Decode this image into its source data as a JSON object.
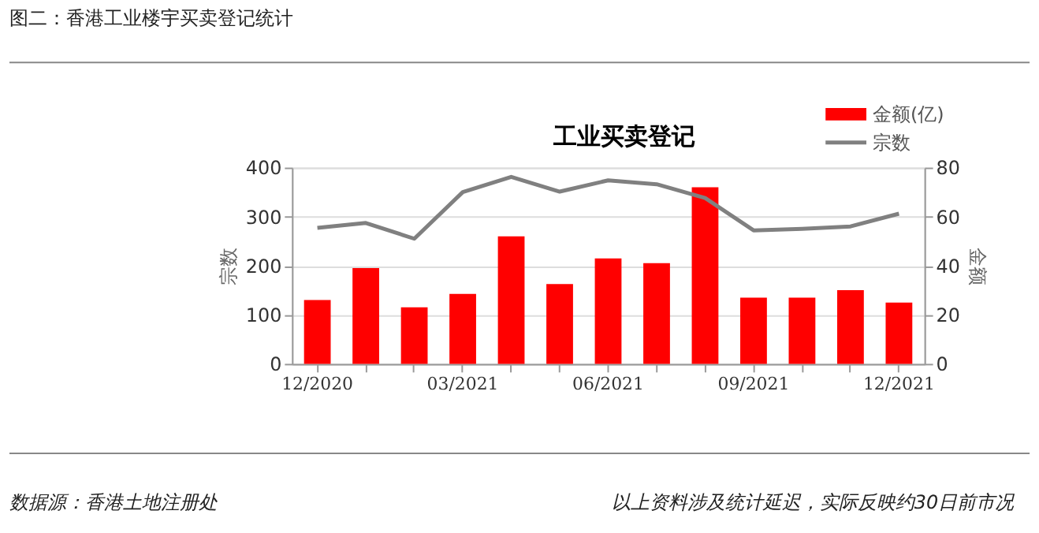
{
  "chart_data": {
    "type": "bar",
    "title": "工业买卖登记",
    "categories": [
      "12/2020",
      null,
      null,
      "03/2021",
      null,
      null,
      "06/2021",
      null,
      null,
      "09/2021",
      null,
      null,
      "12/2021"
    ],
    "ylabel": "宗数",
    "y2label": "金额",
    "ylim": [
      0,
      400
    ],
    "yticks": [
      0,
      100,
      200,
      300,
      400
    ],
    "y2lim": [
      0,
      80
    ],
    "y2ticks": [
      0,
      20,
      40,
      60,
      80
    ],
    "grid": "y",
    "legend": "top right",
    "series": [
      {
        "name": "金额(亿)",
        "axis": "y2",
        "color": "#ff0000",
        "values": [
          26,
          39,
          23,
          28.5,
          52,
          32.5,
          43,
          41,
          72,
          27,
          27,
          30,
          25
        ]
      },
      {
        "name": "宗数",
        "type": "line",
        "color": "#808080",
        "values": [
          277,
          287,
          255,
          350,
          381,
          351,
          374,
          366,
          338,
          272,
          275,
          280,
          306
        ]
      }
    ],
    "annotations": [
      "图二：香港工业楼宇买卖登记统计",
      "数据源：香港土地注册处",
      "以上资料涉及统计延迟，实际反映约30日前市况"
    ]
  }
}
